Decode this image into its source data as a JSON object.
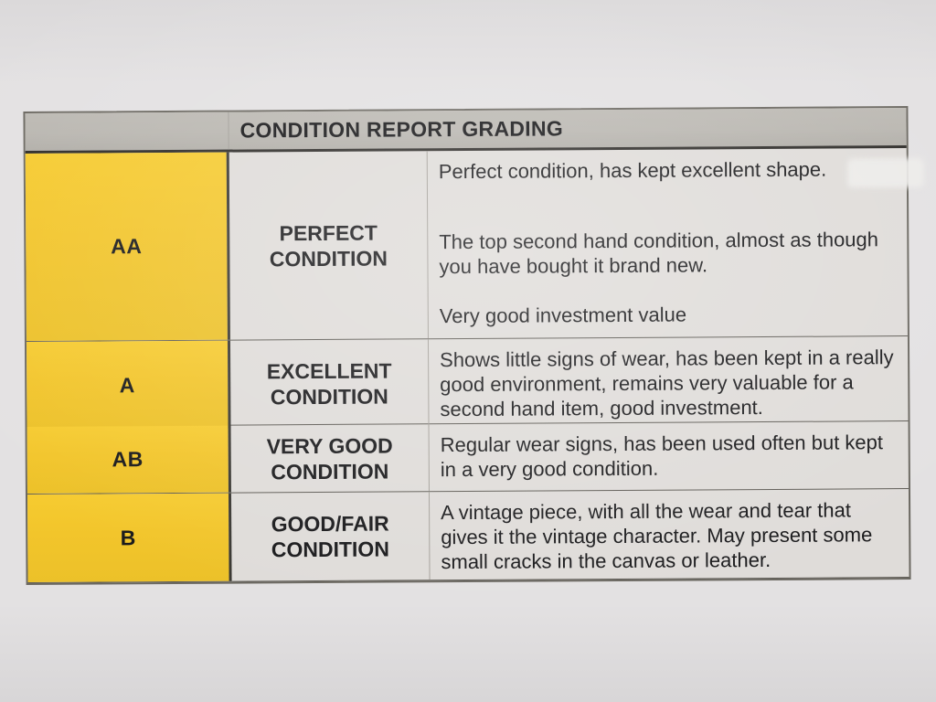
{
  "colors": {
    "paper": "#e3e1e2",
    "header_bar": "#b9b6b0",
    "grade_column": "#f2c52b",
    "cell_background": "#dfdcd9",
    "text": "#1a1a1c"
  },
  "table": {
    "title": "CONDITION REPORT GRADING",
    "rows": [
      {
        "grade": "AA",
        "condition_label": "PERFECT CONDITION",
        "description_paragraphs": [
          "Perfect condition, has kept excellent shape.",
          "The top second hand condition, almost as though you have bought it brand new.",
          "Very good investment value"
        ]
      },
      {
        "grade": "A",
        "condition_label": "EXCELLENT CONDITION",
        "description_paragraphs": [
          "Shows little signs of wear, has been kept in a really good environment, remains very valuable for a second hand item, good investment."
        ]
      },
      {
        "grade": "AB",
        "condition_label": "VERY GOOD CONDITION",
        "description_paragraphs": [
          "Regular wear signs, has been used often but kept in a very good condition."
        ]
      },
      {
        "grade": "B",
        "condition_label": "GOOD/FAIR CONDITION",
        "description_paragraphs": [
          "A vintage piece, with all the wear and tear that gives it the vintage character. May present some small cracks in the canvas or leather."
        ]
      }
    ]
  }
}
